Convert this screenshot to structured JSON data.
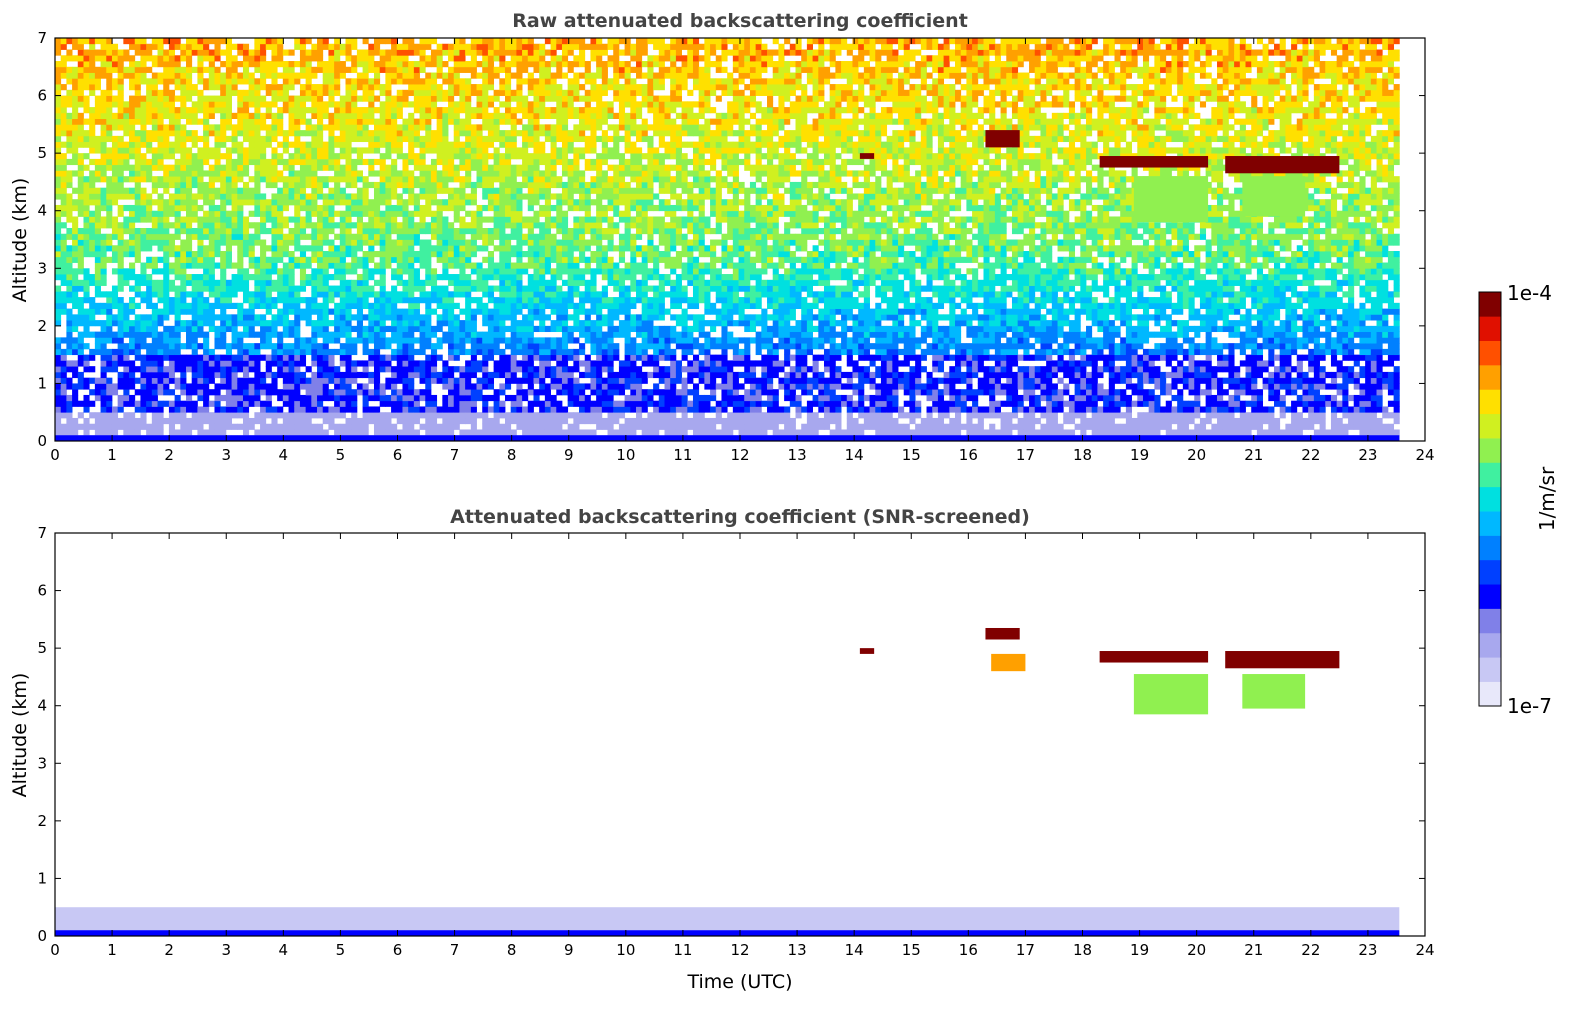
{
  "chart_data": [
    {
      "type": "heatmap",
      "title": "Raw attenuated backscattering coefficient",
      "xlabel": "",
      "ylabel": "Altitude (km)",
      "xlim": [
        0,
        24
      ],
      "ylim": [
        0,
        7
      ],
      "x_ticks": [
        "0",
        "1",
        "2",
        "3",
        "4",
        "5",
        "6",
        "7",
        "8",
        "9",
        "10",
        "11",
        "12",
        "13",
        "14",
        "15",
        "16",
        "17",
        "18",
        "19",
        "20",
        "21",
        "22",
        "23",
        "24"
      ],
      "y_ticks": [
        "0",
        "1",
        "2",
        "3",
        "4",
        "5",
        "6",
        "7"
      ],
      "data_end_time": 23.55,
      "features": [
        {
          "time_start": 0,
          "time_end": 23.55,
          "alt_base": 0,
          "alt_top": 0.1,
          "level": "low"
        },
        {
          "time_start": 14.1,
          "time_end": 14.35,
          "alt_base": 4.9,
          "alt_top": 5.0,
          "level": "high"
        },
        {
          "time_start": 16.3,
          "time_end": 16.9,
          "alt_base": 5.1,
          "alt_top": 5.4,
          "level": "high"
        },
        {
          "time_start": 18.3,
          "time_end": 20.2,
          "alt_base": 4.75,
          "alt_top": 4.95,
          "level": "high"
        },
        {
          "time_start": 20.5,
          "time_end": 22.5,
          "alt_base": 4.65,
          "alt_top": 4.95,
          "level": "high"
        },
        {
          "time_start": 18.9,
          "time_end": 20.2,
          "alt_base": 3.8,
          "alt_top": 4.6,
          "level": "medium"
        },
        {
          "time_start": 20.8,
          "time_end": 21.9,
          "alt_base": 3.9,
          "alt_top": 4.6,
          "level": "medium"
        }
      ]
    },
    {
      "type": "heatmap",
      "title": "Attenuated backscattering coefficient (SNR-screened)",
      "xlabel": "Time (UTC)",
      "ylabel": "Altitude (km)",
      "xlim": [
        0,
        24
      ],
      "ylim": [
        0,
        7
      ],
      "x_ticks": [
        "0",
        "1",
        "2",
        "3",
        "4",
        "5",
        "6",
        "7",
        "8",
        "9",
        "10",
        "11",
        "12",
        "13",
        "14",
        "15",
        "16",
        "17",
        "18",
        "19",
        "20",
        "21",
        "22",
        "23",
        "24"
      ],
      "y_ticks": [
        "0",
        "1",
        "2",
        "3",
        "4",
        "5",
        "6",
        "7"
      ],
      "data_end_time": 23.55,
      "features": [
        {
          "time_start": 0,
          "time_end": 23.55,
          "alt_base": 0,
          "alt_top": 0.5,
          "level": "very-low"
        },
        {
          "time_start": 0,
          "time_end": 23.55,
          "alt_base": 0,
          "alt_top": 0.1,
          "level": "low"
        },
        {
          "time_start": 14.1,
          "time_end": 14.35,
          "alt_base": 4.9,
          "alt_top": 5.0,
          "level": "high"
        },
        {
          "time_start": 16.3,
          "time_end": 16.9,
          "alt_base": 5.15,
          "alt_top": 5.35,
          "level": "high"
        },
        {
          "time_start": 16.4,
          "time_end": 17.0,
          "alt_base": 4.6,
          "alt_top": 4.9,
          "level": "medium-high"
        },
        {
          "time_start": 18.3,
          "time_end": 20.2,
          "alt_base": 4.75,
          "alt_top": 4.95,
          "level": "high"
        },
        {
          "time_start": 20.5,
          "time_end": 22.5,
          "alt_base": 4.65,
          "alt_top": 4.95,
          "level": "high"
        },
        {
          "time_start": 18.9,
          "time_end": 20.2,
          "alt_base": 3.85,
          "alt_top": 4.55,
          "level": "medium"
        },
        {
          "time_start": 20.8,
          "time_end": 21.9,
          "alt_base": 3.95,
          "alt_top": 4.55,
          "level": "medium"
        }
      ]
    }
  ],
  "colorbar": {
    "label": "1/m/sr",
    "max_label": "1e-4",
    "min_label": "1e-7",
    "scale": "log",
    "colors": [
      "#e8e8fa",
      "#c8c8f4",
      "#a8a8ee",
      "#8080e8",
      "#0000ff",
      "#0040ff",
      "#0080ff",
      "#00b8ff",
      "#00e0e0",
      "#40f0a0",
      "#90f050",
      "#d0f020",
      "#ffe000",
      "#ffa000",
      "#ff5000",
      "#e01000",
      "#800000"
    ]
  }
}
